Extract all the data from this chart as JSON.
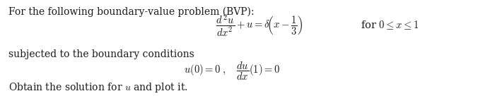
{
  "background_color": "#ffffff",
  "text_color": "#1a1a1a",
  "line1": "For the following boundary-value problem (BVP):",
  "line1_fontsize": 10.0,
  "bc_label": "subjected to the boundary conditions",
  "bc_label_fontsize": 10.0,
  "obtain_label": "Obtain the solution for $u$ and plot it.",
  "obtain_label_fontsize": 10.0,
  "eq_fontsize": 10.5,
  "bc_eq_fontsize": 10.5
}
